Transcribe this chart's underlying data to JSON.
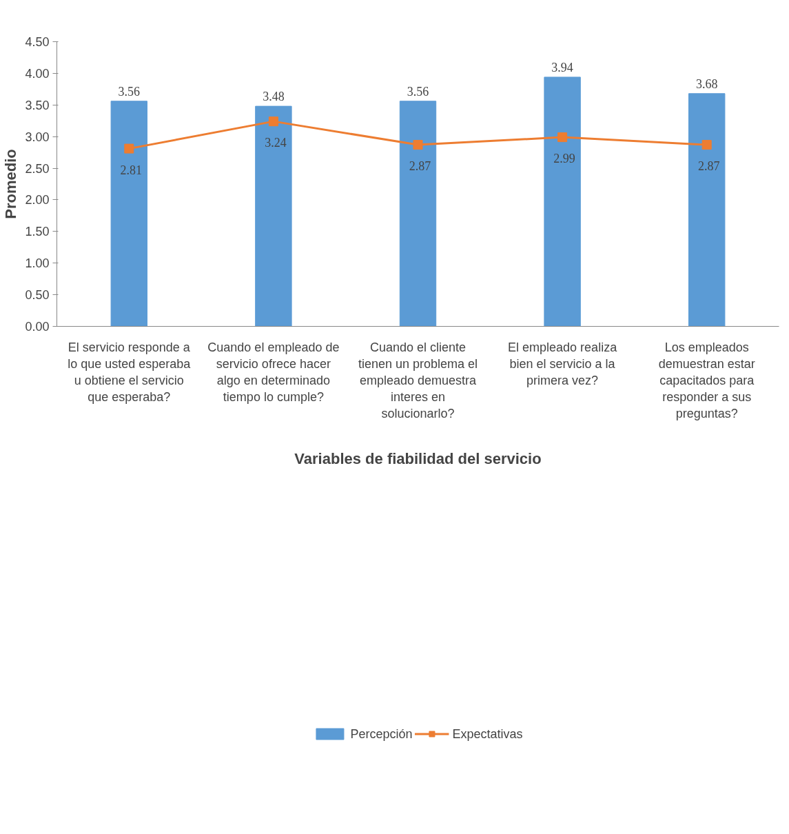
{
  "chart_data": {
    "type": "bar",
    "xlabel": "Variables de fiabilidad del servicio",
    "ylabel": "Promedio",
    "categories": [
      "El servicio responde a lo que usted esperaba u obtiene el servicio que esperaba?",
      "Cuando el empleado de servicio ofrece hacer algo en determinado tiempo lo cumple?",
      "Cuando el cliente tienen un problema el empleado demuestra interes en solucionarlo?",
      "El empleado realiza bien el servicio a la primera vez?",
      "Los empleados demuestran estar capacitados para responder a sus preguntas?"
    ],
    "series": [
      {
        "name": "Percepción",
        "color": "#5b9bd5",
        "values": [
          3.56,
          3.48,
          3.56,
          3.94,
          3.68
        ]
      },
      {
        "name": "Expectativas",
        "type": "line",
        "color": "#ed7d31",
        "values": [
          2.81,
          3.24,
          2.87,
          2.99,
          2.87
        ]
      }
    ],
    "ylim": [
      0,
      4.5
    ],
    "yticks": [
      {
        "value": 0,
        "label": "0.00"
      },
      {
        "value": 0.5,
        "label": "0.50"
      },
      {
        "value": 1,
        "label": "1.00"
      },
      {
        "value": 1.5,
        "label": "1.50"
      },
      {
        "value": 2,
        "label": "2.00"
      },
      {
        "value": 2.5,
        "label": "2.50"
      },
      {
        "value": 3,
        "label": "3.00"
      },
      {
        "value": 3.5,
        "label": "3.50"
      },
      {
        "value": 4,
        "label": "4.00"
      },
      {
        "value": 4.5,
        "label": "4.50"
      }
    ],
    "data_labels": true,
    "legend": "bottom",
    "marker": "square",
    "grid": false
  }
}
